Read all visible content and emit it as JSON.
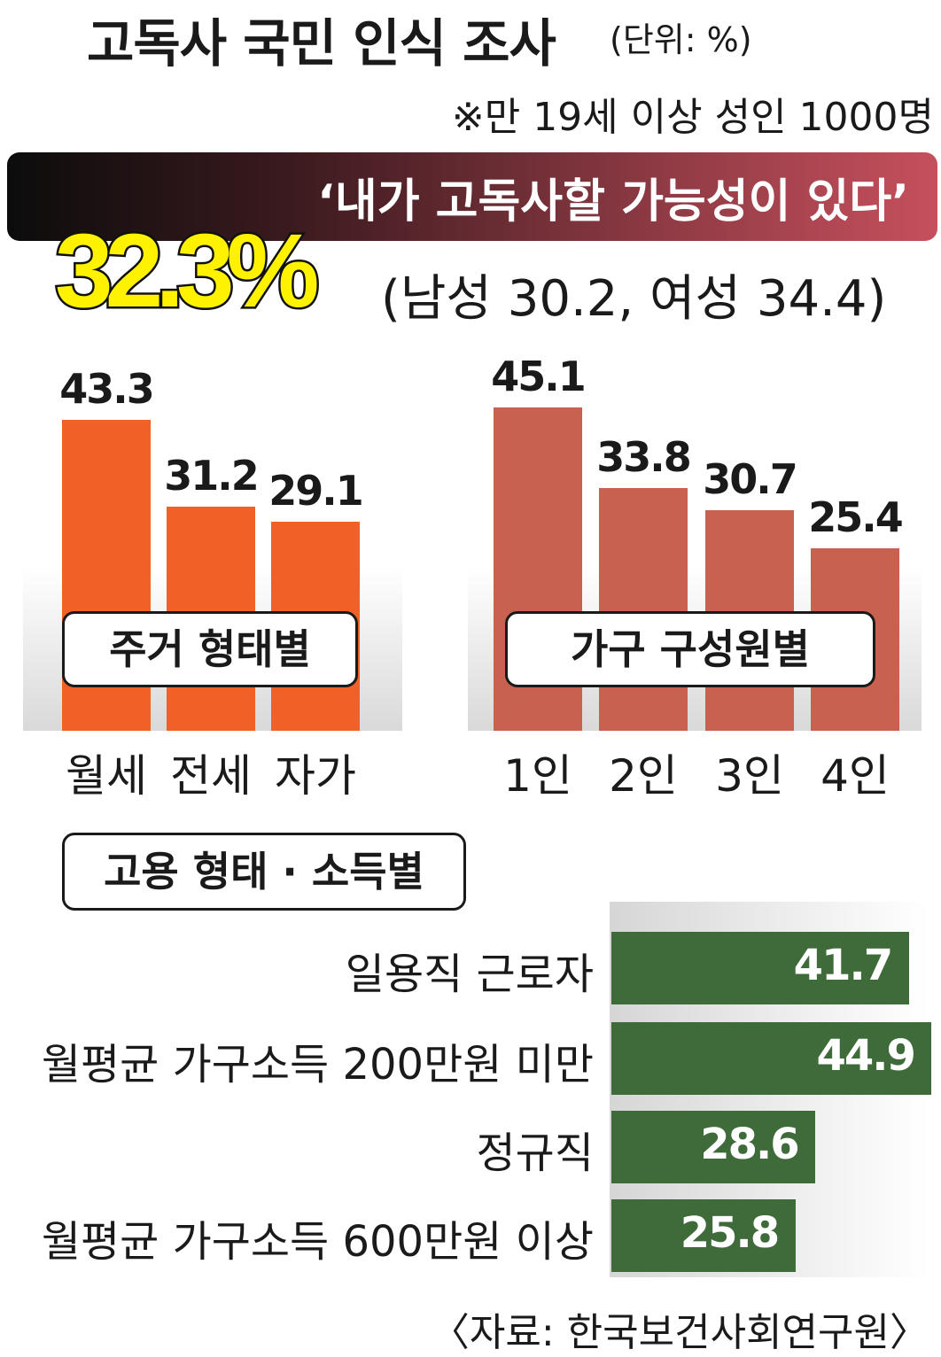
{
  "title": "고독사 국민 인식 조사",
  "unit": "(단위: %)",
  "sample": "※만 19세 이상 성인 1000명",
  "banner": "‘내가 고독사할 가능성이 있다’",
  "headline": "32.3%",
  "gender_breakdown": "(남성 30.2, 여성 34.4)",
  "source": "〈자료: 한국보건사회연구원〉",
  "colors": {
    "housing": "#ef6126",
    "household": "#c96150",
    "employment": "#3f6b3a",
    "headline": "#fff200"
  },
  "chart_data": [
    {
      "type": "bar",
      "title": "주거 형태별",
      "categories": [
        "월세",
        "전세",
        "자가"
      ],
      "values": [
        43.3,
        31.2,
        29.1
      ]
    },
    {
      "type": "bar",
      "title": "가구 구성원별",
      "categories": [
        "1인",
        "2인",
        "3인",
        "4인"
      ],
      "values": [
        45.1,
        33.8,
        30.7,
        25.4
      ]
    },
    {
      "type": "bar",
      "orientation": "horizontal",
      "title": "고용 형태 · 소득별",
      "categories": [
        "일용직 근로자",
        "월평균 가구소득 200만원 미만",
        "정규직",
        "월평균 가구소득 600만원 이상"
      ],
      "values": [
        41.7,
        44.9,
        28.6,
        25.8
      ]
    }
  ]
}
